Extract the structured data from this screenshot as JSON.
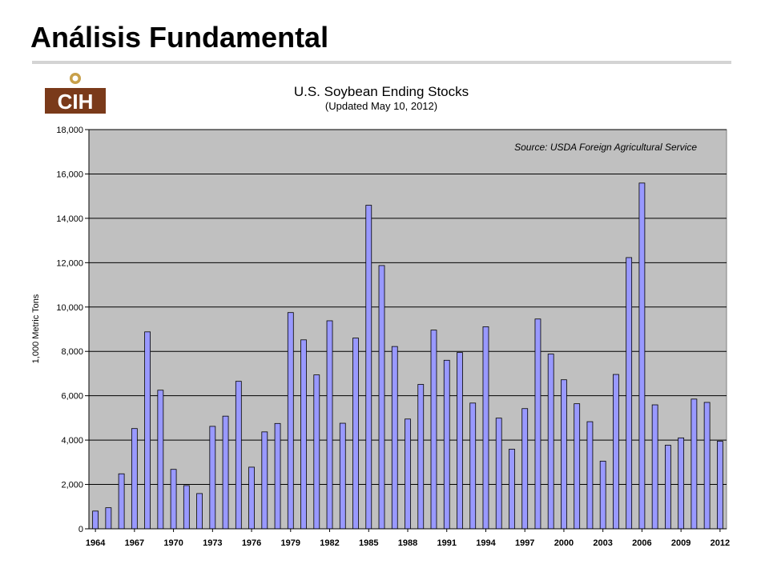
{
  "slide": {
    "title": "Análisis Fundamental"
  },
  "logo": {
    "text": "CIH",
    "colors": {
      "brown": "#7a3a1a",
      "gold": "#c8a04a",
      "dark": "#3a1a0a"
    }
  },
  "chart_data": {
    "type": "bar",
    "title": "U.S. Soybean Ending Stocks",
    "subtitle": "(Updated May 10, 2012)",
    "annotation": "Source: USDA Foreign Agricultural Service",
    "xlabel": "",
    "ylabel": "1,000 Metric Tons",
    "ylim": [
      0,
      18000
    ],
    "y_ticks": [
      "0",
      "2,000",
      "4,000",
      "6,000",
      "8,000",
      "10,000",
      "12,000",
      "14,000",
      "16,000",
      "18,000"
    ],
    "x_tick_labels": [
      "1964",
      "1967",
      "1970",
      "1973",
      "1976",
      "1979",
      "1982",
      "1985",
      "1988",
      "1991",
      "1994",
      "1997",
      "2000",
      "2003",
      "2006",
      "2009",
      "2012"
    ],
    "grid": true,
    "colors": {
      "bar_fill": "#9999ff",
      "bar_stroke": "#000000",
      "plot_bg": "#c0c0c0",
      "grid": "#000000"
    },
    "categories": [
      "1964",
      "1965",
      "1966",
      "1967",
      "1968",
      "1969",
      "1970",
      "1971",
      "1972",
      "1973",
      "1974",
      "1975",
      "1976",
      "1977",
      "1978",
      "1979",
      "1980",
      "1981",
      "1982",
      "1983",
      "1984",
      "1985",
      "1986",
      "1987",
      "1988",
      "1989",
      "1990",
      "1991",
      "1992",
      "1993",
      "1994",
      "1995",
      "1996",
      "1997",
      "1998",
      "1999",
      "2000",
      "2001",
      "2002",
      "2003",
      "2004",
      "2005",
      "2006",
      "2007",
      "2008",
      "2009",
      "2010",
      "2011",
      "2012"
    ],
    "values": [
      800,
      950,
      2480,
      4520,
      8880,
      6250,
      2680,
      1950,
      1590,
      4620,
      5080,
      6650,
      2780,
      4370,
      4750,
      9750,
      8520,
      6940,
      9380,
      4760,
      8600,
      14590,
      11870,
      8220,
      4950,
      6510,
      8960,
      7600,
      7950,
      5670,
      9110,
      4990,
      3590,
      5420,
      9460,
      7880,
      6720,
      5640,
      4830,
      3050,
      6960,
      12230,
      15590,
      5590,
      3770,
      4100,
      5850,
      5700,
      3950
    ]
  }
}
